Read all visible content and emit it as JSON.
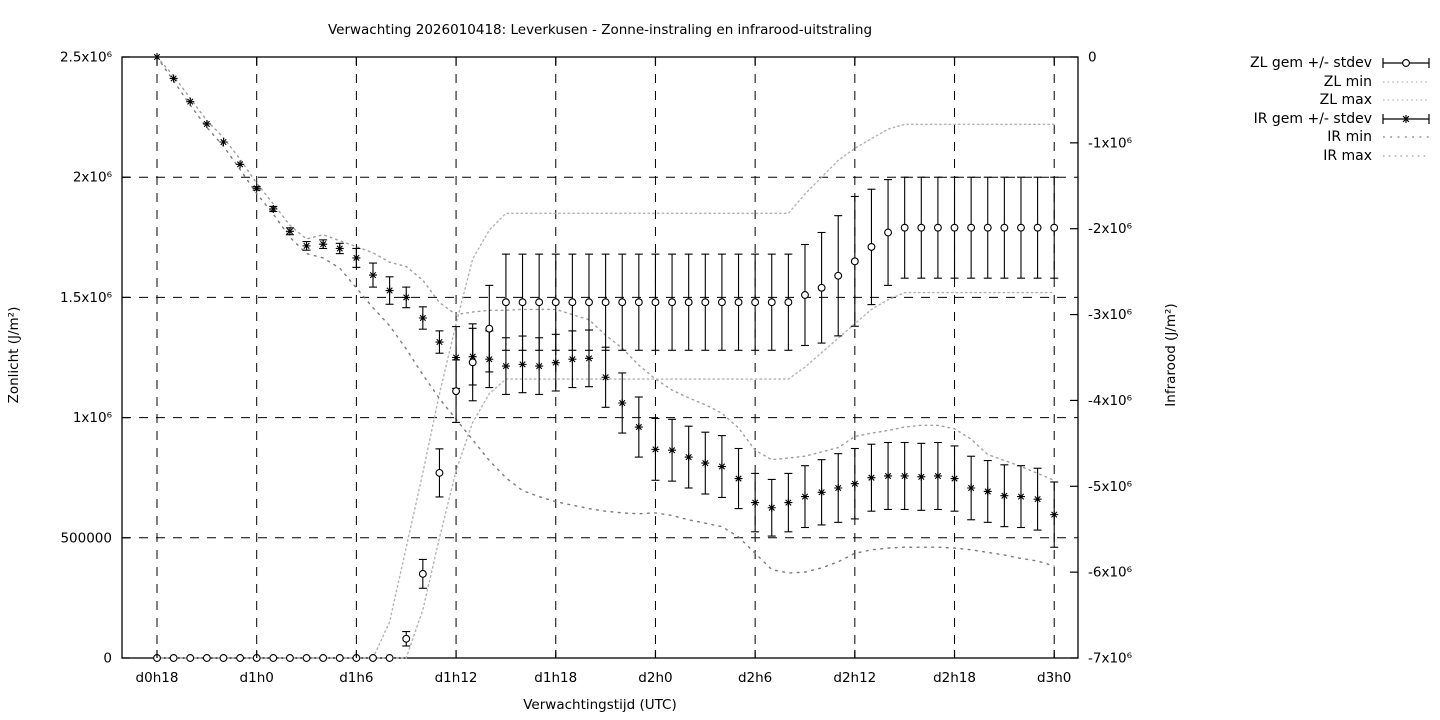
{
  "title": "Verwachting 2026010418: Leverkusen - Zonne-instraling en infrarood-uitstraling",
  "axes": {
    "x": {
      "label": "Verwachtingstijd (UTC)",
      "tick_labels": [
        "d0h18",
        "d1h0",
        "d1h6",
        "d1h12",
        "d1h18",
        "d2h0",
        "d2h6",
        "d2h12",
        "d2h18",
        "d3h0"
      ],
      "tick_hours": [
        18,
        24,
        30,
        36,
        42,
        48,
        54,
        60,
        66,
        72
      ]
    },
    "y_left": {
      "label": "Zonlicht (J/m²)",
      "tick_labels": [
        "0",
        "500000",
        "1x10⁶",
        "1.5x10⁶",
        "2x10⁶",
        "2.5x10⁶"
      ],
      "tick_values_e6": [
        0,
        0.5,
        1,
        1.5,
        2,
        2.5
      ],
      "range_e6": [
        0,
        2.5
      ]
    },
    "y_right": {
      "label": "Infrarood (J/m²)",
      "tick_labels": [
        "0",
        "-1x10⁶",
        "-2x10⁶",
        "-3x10⁶",
        "-4x10⁶",
        "-5x10⁶",
        "-6x10⁶",
        "-7x10⁶"
      ],
      "tick_values_e6": [
        0,
        -1,
        -2,
        -3,
        -4,
        -5,
        -6,
        -7
      ],
      "range_e6": [
        -7,
        0
      ]
    }
  },
  "legend": [
    {
      "label": "ZL gem +/- stdev",
      "style": "errorbar-circle"
    },
    {
      "label": "ZL min",
      "style": "dots-fine"
    },
    {
      "label": "ZL max",
      "style": "dots-fine"
    },
    {
      "label": "IR gem +/- stdev",
      "style": "errorbar-star"
    },
    {
      "label": "IR min",
      "style": "dots-sparse"
    },
    {
      "label": "IR max",
      "style": "dots-med"
    }
  ],
  "colors": {
    "foreground": "#000000",
    "grid": "#000000",
    "zl_envelope": "#b3b3b3",
    "ir_max_envelope": "#9e9e9e",
    "ir_min_envelope": "#7a7a7a"
  },
  "chart_data": {
    "type": "line",
    "description": "Ensemble forecast of cumulative solar irradiation (ZL, left axis) and infrared outgoing radiation (IR, right axis) with mean +/- stdev errorbars and min/max envelopes",
    "values_unit": "1e6 J/m²",
    "x_unit": "forecast time (UTC), hourly",
    "x_hours": [
      18,
      19,
      20,
      21,
      22,
      23,
      24,
      25,
      26,
      27,
      28,
      29,
      30,
      31,
      32,
      33,
      34,
      35,
      36,
      37,
      38,
      39,
      40,
      41,
      42,
      43,
      44,
      45,
      46,
      47,
      48,
      49,
      50,
      51,
      52,
      53,
      54,
      55,
      56,
      57,
      58,
      59,
      60,
      61,
      62,
      63,
      64,
      65,
      66,
      67,
      68,
      69,
      70,
      71,
      72
    ],
    "series": [
      {
        "name": "ZL gem +/- stdev",
        "axis": "left",
        "marker": "circle",
        "mean": [
          0,
          0,
          0,
          0,
          0,
          0,
          0,
          0,
          0,
          0,
          0,
          0,
          0,
          0,
          0,
          0.08,
          0.35,
          0.77,
          1.11,
          1.23,
          1.37,
          1.48,
          1.48,
          1.48,
          1.48,
          1.48,
          1.48,
          1.48,
          1.48,
          1.48,
          1.48,
          1.48,
          1.48,
          1.48,
          1.48,
          1.48,
          1.48,
          1.48,
          1.48,
          1.51,
          1.54,
          1.59,
          1.65,
          1.71,
          1.77,
          1.79,
          1.79,
          1.79,
          1.79,
          1.79,
          1.79,
          1.79,
          1.79,
          1.79,
          1.79
        ],
        "stdev": [
          0,
          0,
          0,
          0,
          0,
          0,
          0,
          0,
          0,
          0,
          0,
          0,
          0,
          0,
          0,
          0.03,
          0.06,
          0.1,
          0.13,
          0.16,
          0.18,
          0.2,
          0.2,
          0.2,
          0.2,
          0.2,
          0.2,
          0.2,
          0.2,
          0.2,
          0.2,
          0.2,
          0.2,
          0.2,
          0.2,
          0.2,
          0.2,
          0.2,
          0.2,
          0.21,
          0.23,
          0.25,
          0.27,
          0.24,
          0.22,
          0.21,
          0.21,
          0.21,
          0.21,
          0.21,
          0.21,
          0.21,
          0.21,
          0.21,
          0.21
        ]
      },
      {
        "name": "ZL min",
        "axis": "left",
        "marker": "none",
        "values": [
          0,
          0,
          0,
          0,
          0,
          0,
          0,
          0,
          0,
          0,
          0,
          0,
          0,
          0,
          0,
          0,
          0.2,
          0.5,
          0.78,
          0.98,
          1.1,
          1.16,
          1.16,
          1.16,
          1.16,
          1.16,
          1.16,
          1.16,
          1.16,
          1.16,
          1.16,
          1.16,
          1.16,
          1.16,
          1.16,
          1.16,
          1.16,
          1.16,
          1.16,
          1.21,
          1.27,
          1.33,
          1.39,
          1.45,
          1.49,
          1.52,
          1.52,
          1.52,
          1.52,
          1.52,
          1.52,
          1.52,
          1.52,
          1.52,
          1.52
        ]
      },
      {
        "name": "ZL max",
        "axis": "left",
        "marker": "none",
        "values": [
          0,
          0,
          0,
          0,
          0,
          0,
          0,
          0,
          0,
          0,
          0,
          0,
          0,
          0,
          0.15,
          0.46,
          0.77,
          1.1,
          1.39,
          1.66,
          1.78,
          1.85,
          1.85,
          1.85,
          1.85,
          1.85,
          1.85,
          1.85,
          1.85,
          1.85,
          1.85,
          1.85,
          1.85,
          1.85,
          1.85,
          1.85,
          1.85,
          1.85,
          1.85,
          1.93,
          2.0,
          2.07,
          2.12,
          2.16,
          2.2,
          2.22,
          2.22,
          2.22,
          2.22,
          2.22,
          2.22,
          2.22,
          2.22,
          2.22,
          2.22
        ]
      },
      {
        "name": "IR gem +/- stdev",
        "axis": "right",
        "marker": "star",
        "mean": [
          0,
          -0.25,
          -0.52,
          -0.78,
          -0.99,
          -1.25,
          -1.53,
          -1.77,
          -2.03,
          -2.2,
          -2.18,
          -2.23,
          -2.34,
          -2.54,
          -2.72,
          -2.8,
          -3.04,
          -3.32,
          -3.5,
          -3.49,
          -3.52,
          -3.6,
          -3.58,
          -3.6,
          -3.56,
          -3.52,
          -3.51,
          -3.73,
          -4.03,
          -4.31,
          -4.57,
          -4.58,
          -4.66,
          -4.73,
          -4.77,
          -4.91,
          -5.19,
          -5.25,
          -5.19,
          -5.12,
          -5.07,
          -5.02,
          -4.97,
          -4.9,
          -4.88,
          -4.88,
          -4.89,
          -4.88,
          -4.91,
          -5.02,
          -5.06,
          -5.11,
          -5.12,
          -5.15,
          -5.33
        ],
        "stdev": [
          0,
          0,
          0,
          0,
          0,
          0,
          0.02,
          0.03,
          0.04,
          0.05,
          0.05,
          0.06,
          0.11,
          0.14,
          0.16,
          0.12,
          0.13,
          0.13,
          0.36,
          0.33,
          0.33,
          0.33,
          0.33,
          0.33,
          0.33,
          0.33,
          0.33,
          0.35,
          0.35,
          0.35,
          0.36,
          0.36,
          0.36,
          0.36,
          0.36,
          0.35,
          0.34,
          0.33,
          0.34,
          0.36,
          0.38,
          0.4,
          0.41,
          0.39,
          0.39,
          0.39,
          0.39,
          0.39,
          0.38,
          0.37,
          0.36,
          0.36,
          0.36,
          0.36,
          0.38
        ]
      },
      {
        "name": "IR min",
        "axis": "right",
        "marker": "none",
        "values": [
          0,
          -0.28,
          -0.56,
          -0.82,
          -1.04,
          -1.31,
          -1.59,
          -1.83,
          -2.1,
          -2.29,
          -2.34,
          -2.46,
          -2.69,
          -2.92,
          -3.13,
          -3.4,
          -3.7,
          -3.98,
          -4.22,
          -4.46,
          -4.7,
          -4.9,
          -5.05,
          -5.12,
          -5.18,
          -5.22,
          -5.26,
          -5.29,
          -5.31,
          -5.32,
          -5.31,
          -5.34,
          -5.39,
          -5.43,
          -5.47,
          -5.59,
          -5.78,
          -5.97,
          -6.01,
          -6.0,
          -5.95,
          -5.88,
          -5.78,
          -5.74,
          -5.72,
          -5.71,
          -5.71,
          -5.71,
          -5.72,
          -5.74,
          -5.77,
          -5.8,
          -5.84,
          -5.87,
          -5.93
        ]
      },
      {
        "name": "IR max",
        "axis": "right",
        "marker": "none",
        "values": [
          0,
          -0.22,
          -0.48,
          -0.74,
          -0.94,
          -1.19,
          -1.47,
          -1.71,
          -1.96,
          -2.12,
          -2.07,
          -2.14,
          -2.21,
          -2.28,
          -2.39,
          -2.44,
          -2.6,
          -2.86,
          -3.0,
          -2.97,
          -2.95,
          -2.95,
          -2.94,
          -2.94,
          -2.94,
          -3.0,
          -3.06,
          -3.24,
          -3.39,
          -3.59,
          -3.75,
          -3.88,
          -3.97,
          -4.05,
          -4.15,
          -4.32,
          -4.58,
          -4.69,
          -4.67,
          -4.65,
          -4.6,
          -4.55,
          -4.42,
          -4.38,
          -4.35,
          -4.31,
          -4.29,
          -4.29,
          -4.33,
          -4.45,
          -4.63,
          -4.7,
          -4.77,
          -4.85,
          -4.93
        ]
      }
    ]
  }
}
